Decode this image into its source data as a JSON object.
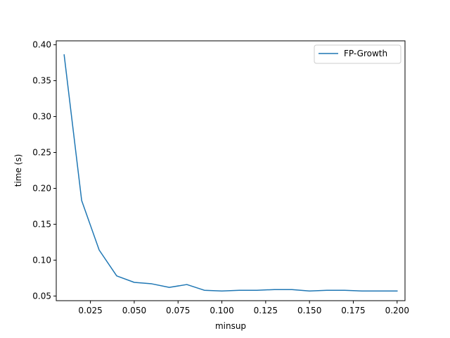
{
  "chart_data": {
    "type": "line",
    "title": "",
    "xlabel": "minsup",
    "ylabel": "time (s)",
    "xlim": [
      0.0055,
      0.2045
    ],
    "ylim": [
      0.0435,
      0.4055
    ],
    "x_ticks": [
      0.025,
      0.05,
      0.075,
      0.1,
      0.125,
      0.15,
      0.175,
      0.2
    ],
    "x_tick_labels": [
      "0.025",
      "0.050",
      "0.075",
      "0.100",
      "0.125",
      "0.150",
      "0.175",
      "0.200"
    ],
    "y_ticks": [
      0.05,
      0.1,
      0.15,
      0.2,
      0.25,
      0.3,
      0.35,
      0.4
    ],
    "y_tick_labels": [
      "0.05",
      "0.10",
      "0.15",
      "0.20",
      "0.25",
      "0.30",
      "0.35",
      "0.40"
    ],
    "grid": false,
    "legend_position": "top-right",
    "series": [
      {
        "name": "FP-Growth",
        "color": "#1f77b4",
        "x": [
          0.01,
          0.02,
          0.03,
          0.04,
          0.05,
          0.06,
          0.07,
          0.08,
          0.09,
          0.1,
          0.11,
          0.12,
          0.13,
          0.14,
          0.15,
          0.16,
          0.17,
          0.18,
          0.19,
          0.2
        ],
        "y": [
          0.386,
          0.183,
          0.114,
          0.078,
          0.069,
          0.067,
          0.062,
          0.066,
          0.058,
          0.057,
          0.058,
          0.058,
          0.059,
          0.059,
          0.057,
          0.058,
          0.058,
          0.057,
          0.057,
          0.057
        ]
      }
    ]
  }
}
